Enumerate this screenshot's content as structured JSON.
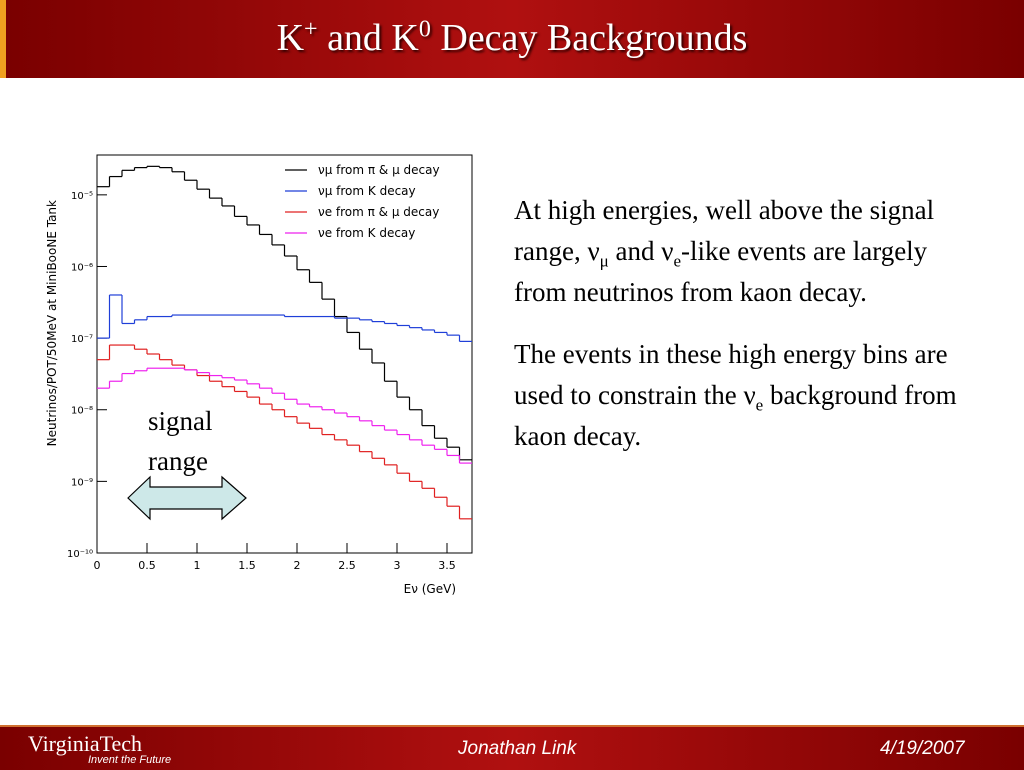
{
  "header": {
    "title": [
      {
        "text": "K"
      },
      {
        "text": "+",
        "style": "sup"
      },
      {
        "text": " and K"
      },
      {
        "text": "0",
        "style": "sup"
      },
      {
        "text": " Decay Backgrounds"
      }
    ]
  },
  "chart_data": {
    "type": "histogram",
    "log_y": true,
    "xlabel": "Eν (GeV)",
    "ylabel": "Neutrinos/POT/50MeV at MiniBooNE Tank",
    "bins": [
      0,
      0.125,
      0.25,
      0.375,
      0.5,
      0.625,
      0.75,
      0.875,
      1,
      1.125,
      1.25,
      1.375,
      1.5,
      1.625,
      1.75,
      1.875,
      2,
      2.125,
      2.25,
      2.375,
      2.5,
      2.625,
      2.75,
      2.875,
      3,
      3.125,
      3.25,
      3.375,
      3.5,
      3.625,
      3.75
    ],
    "xlim": [
      0,
      3.75
    ],
    "xticks": [
      0,
      0.5,
      1,
      1.5,
      2,
      2.5,
      3,
      3.5
    ],
    "ylim": [
      1e-10,
      3.6e-05
    ],
    "yticks": [
      {
        "value": 1e-10,
        "label": "10⁻¹⁰"
      },
      {
        "value": 1e-09,
        "label": "10⁻⁹"
      },
      {
        "value": 1e-08,
        "label": "10⁻⁸"
      },
      {
        "value": 1e-07,
        "label": "10⁻⁷"
      },
      {
        "value": 1e-06,
        "label": "10⁻⁶"
      },
      {
        "value": 1e-05,
        "label": "10⁻⁵"
      }
    ],
    "legend": "upper-right",
    "series": [
      {
        "name": "νμ from π & μ decay",
        "color": "#000000",
        "values": [
          1.3e-05,
          1.8e-05,
          2.2e-05,
          2.4e-05,
          2.5e-05,
          2.4e-05,
          2.1e-05,
          1.6e-05,
          1.2e-05,
          9e-06,
          7e-06,
          5e-06,
          3.8e-06,
          2.8e-06,
          2e-06,
          1.4e-06,
          9e-07,
          6e-07,
          3.5e-07,
          2e-07,
          1.2e-07,
          7e-08,
          4.5e-08,
          2.5e-08,
          1.5e-08,
          1e-08,
          6e-09,
          4e-09,
          3e-09,
          2e-09
        ]
      },
      {
        "name": "νμ from K decay",
        "color": "#1f3fd8",
        "values": [
          1e-07,
          4e-07,
          1.6e-07,
          1.8e-07,
          2e-07,
          2e-07,
          2.1e-07,
          2.1e-07,
          2.1e-07,
          2.1e-07,
          2.1e-07,
          2.1e-07,
          2.1e-07,
          2.1e-07,
          2.1e-07,
          2e-07,
          2e-07,
          2e-07,
          2e-07,
          1.9e-07,
          1.9e-07,
          1.8e-07,
          1.7e-07,
          1.6e-07,
          1.5e-07,
          1.4e-07,
          1.3e-07,
          1.2e-07,
          1.1e-07,
          9e-08
        ]
      },
      {
        "name": "νe from π & μ decay",
        "color": "#e02020",
        "values": [
          5e-08,
          8e-08,
          8e-08,
          7e-08,
          6e-08,
          5e-08,
          4.2e-08,
          3.6e-08,
          3e-08,
          2.5e-08,
          2.1e-08,
          1.8e-08,
          1.5e-08,
          1.2e-08,
          1e-08,
          8e-09,
          6.5e-09,
          5.5e-09,
          4.5e-09,
          3.8e-09,
          3.2e-09,
          2.6e-09,
          2.1e-09,
          1.7e-09,
          1.3e-09,
          1e-09,
          8e-10,
          6e-10,
          4.5e-10,
          3e-10
        ]
      },
      {
        "name": "νe from K decay",
        "color": "#ee22ee",
        "values": [
          2e-08,
          2.5e-08,
          3.2e-08,
          3.5e-08,
          3.8e-08,
          3.8e-08,
          3.8e-08,
          3.6e-08,
          3.3e-08,
          3e-08,
          2.8e-08,
          2.6e-08,
          2.3e-08,
          2e-08,
          1.7e-08,
          1.4e-08,
          1.2e-08,
          1.1e-08,
          1e-08,
          9e-09,
          8e-09,
          7e-09,
          6e-09,
          5.2e-09,
          4.5e-09,
          3.8e-09,
          3.2e-09,
          2.8e-09,
          2.3e-09,
          1.8e-09
        ]
      }
    ],
    "annotations": [
      "signal",
      "range"
    ]
  },
  "body": {
    "paragraphs": [
      [
        {
          "text": "At high energies, well above the signal range, ν"
        },
        {
          "text": "μ",
          "style": "sub"
        },
        {
          "text": " and ν"
        },
        {
          "text": "e",
          "style": "sub"
        },
        {
          "text": "-like events are largely from neutrinos from kaon decay."
        }
      ],
      [
        {
          "text": "The events in these high energy bins are used to constrain the ν"
        },
        {
          "text": "e",
          "style": "sub"
        },
        {
          "text": " background from kaon decay."
        }
      ]
    ]
  },
  "footer": {
    "logo": "VirginiaTech",
    "tagline": "Invent the Future",
    "author": "Jonathan Link",
    "date": "4/19/2007"
  }
}
